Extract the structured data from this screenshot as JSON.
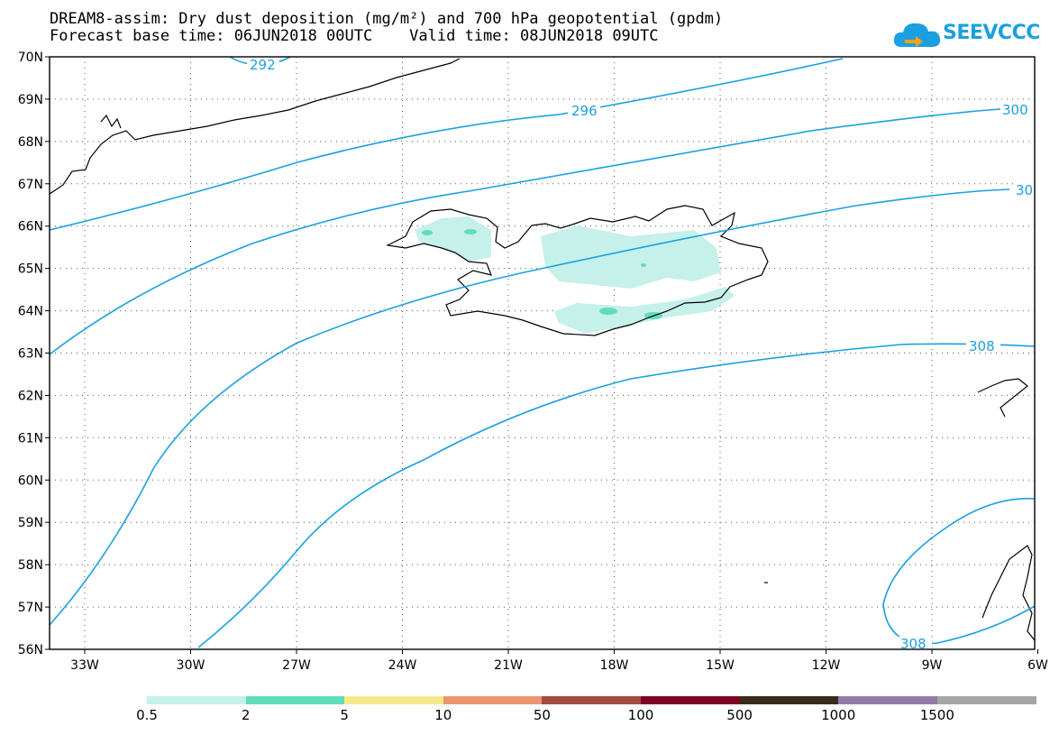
{
  "header": {
    "title_line1": "DREAM8-assim: Dry dust deposition (mg/m²) and 700 hPa geopotential (gpdm)",
    "title_line2": "Forecast base time: 06JUN2018 00UTC    Valid time: 08JUN2018 09UTC"
  },
  "logo": {
    "text": "SEEVCCC",
    "icon": "cloud-icon",
    "color": "#1aa0e0"
  },
  "map": {
    "lat_labels": [
      "70N",
      "69N",
      "68N",
      "67N",
      "66N",
      "65N",
      "64N",
      "63N",
      "62N",
      "61N",
      "60N",
      "59N",
      "58N",
      "57N",
      "56N"
    ],
    "lon_labels": [
      "33W",
      "30W",
      "27W",
      "24W",
      "21W",
      "18W",
      "15W",
      "12W",
      "9W",
      "6W"
    ],
    "contour_color": "#1aa0e0",
    "contour_labels": [
      "292",
      "296",
      "300",
      "30",
      "308",
      "308"
    ]
  },
  "legend": {
    "colors": [
      "#c6f0ea",
      "#5fdcbc",
      "#f6e98a",
      "#eb9570",
      "#a44a40",
      "#7c0424",
      "#3a2a1a",
      "#917ca6",
      "#a6a6a6"
    ],
    "labels": [
      "0.5",
      "2",
      "5",
      "10",
      "50",
      "100",
      "500",
      "1000",
      "1500"
    ]
  }
}
